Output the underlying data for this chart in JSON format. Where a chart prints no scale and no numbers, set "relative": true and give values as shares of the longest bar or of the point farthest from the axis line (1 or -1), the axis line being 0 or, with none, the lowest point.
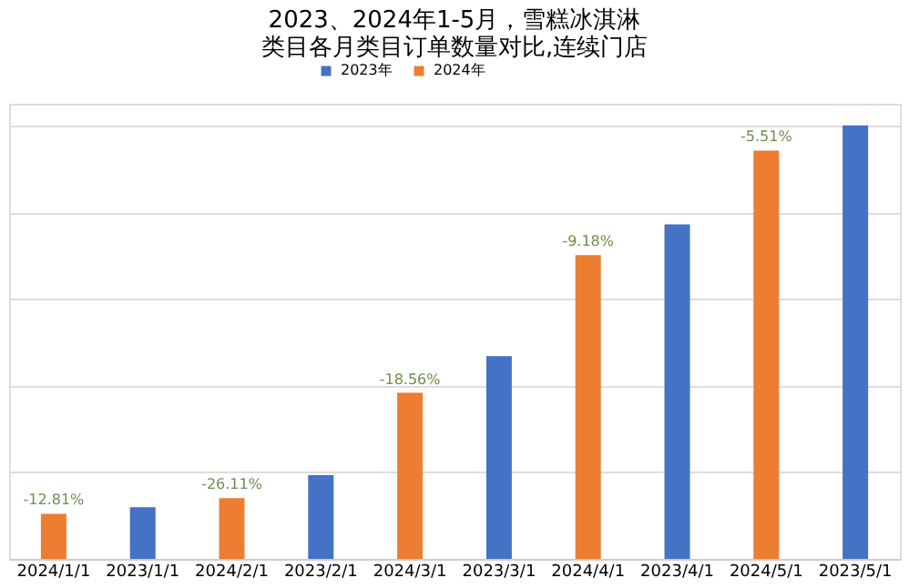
{
  "chart_data": {
    "type": "bar",
    "title": "2023、2024年1-5月，雪糕冰淇淋类目各月类目订单数量对比,连续门店",
    "categories": [
      "2024/1/1",
      "2023/1/1",
      "2024/2/1",
      "2023/2/1",
      "2024/3/1",
      "2023/3/1",
      "2024/4/1",
      "2023/4/1",
      "2024/5/1",
      "2023/5/1"
    ],
    "relative": true,
    "grid": "y",
    "legend": "top",
    "series": [
      {
        "name": "2023年",
        "color": "#4472c4",
        "values": [
          null,
          0.119,
          null,
          0.193,
          null,
          0.468,
          null,
          0.772,
          null,
          1
        ]
      },
      {
        "name": "2024年",
        "color": "#ed7d31",
        "values": [
          0.104,
          null,
          0.14,
          null,
          0.383,
          null,
          0.701,
          null,
          0.942,
          null
        ]
      }
    ],
    "annotations": [
      {
        "text": "-12.81%",
        "x": "2024/1/1",
        "y": 0.104
      },
      {
        "text": "-26.11%",
        "x": "2024/2/1",
        "y": 0.14
      },
      {
        "text": "-18.56%",
        "x": "2024/3/1",
        "y": 0.383
      },
      {
        "text": "-9.18%",
        "x": "2024/4/1",
        "y": 0.701
      },
      {
        "text": "-5.51%",
        "x": "2024/5/1",
        "y": 0.942
      }
    ]
  }
}
